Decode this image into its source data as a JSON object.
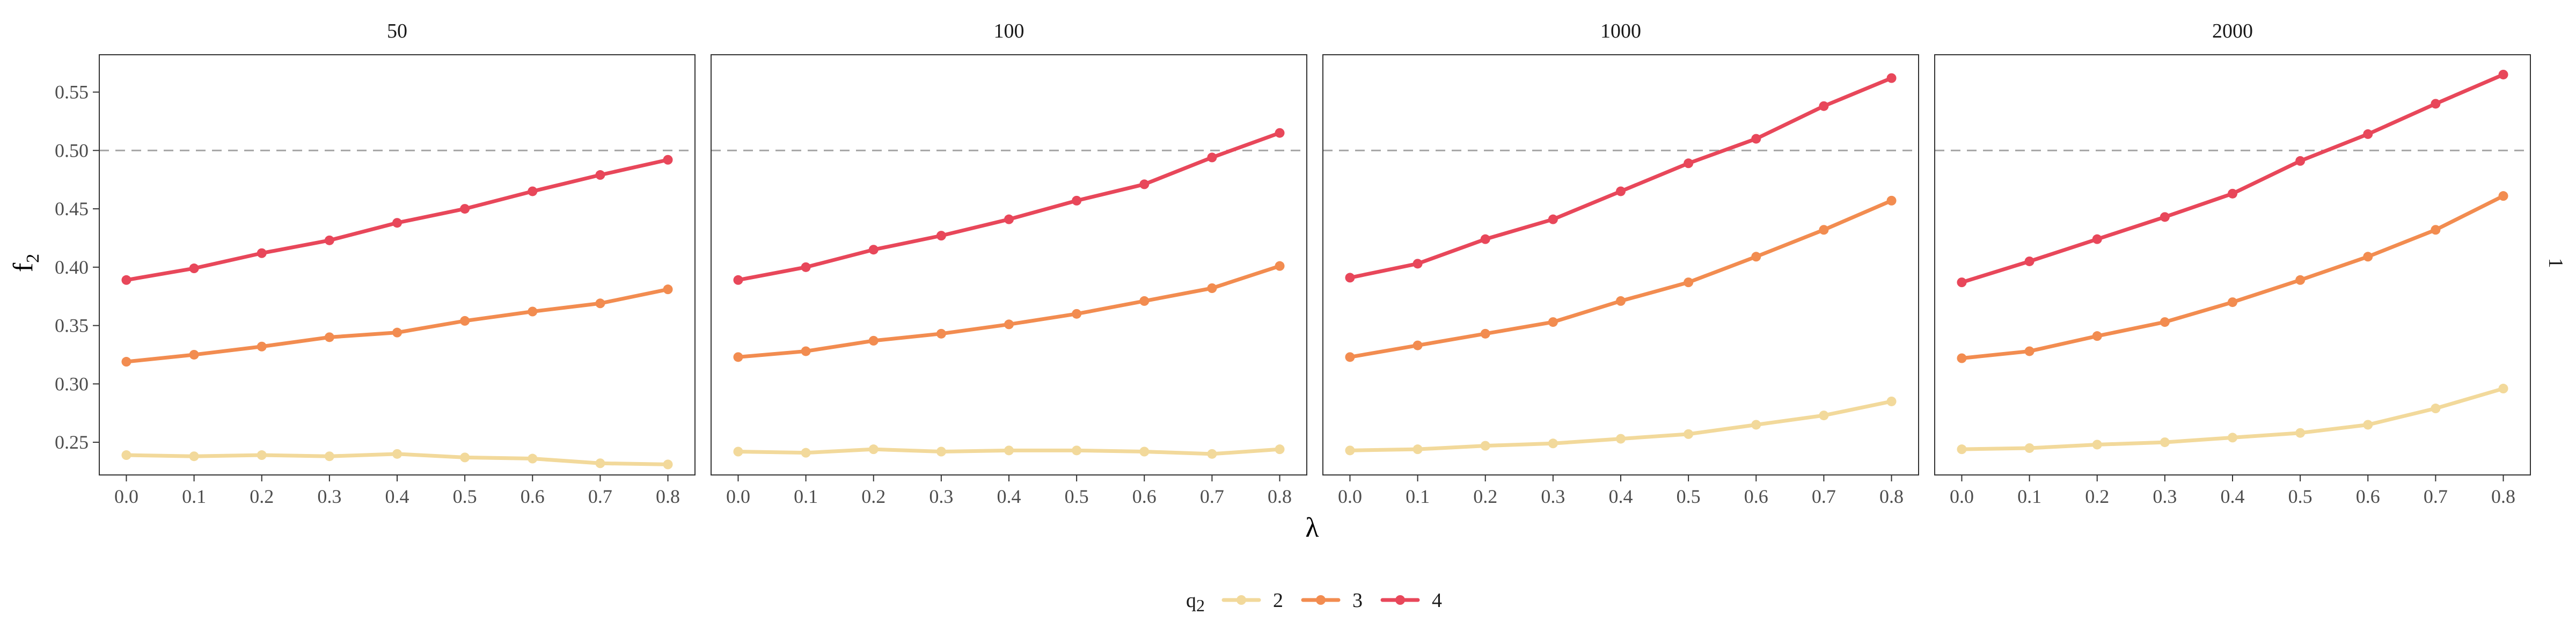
{
  "chart_data": {
    "type": "line",
    "xlabel": "λ",
    "ylabel": "f",
    "ylabel_subscript": "2",
    "right_strip_label": "1",
    "x_ticks": [
      "0.0",
      "0.1",
      "0.2",
      "0.3",
      "0.4",
      "0.5",
      "0.6",
      "0.7",
      "0.8"
    ],
    "y_ticks": [
      "0.25",
      "0.30",
      "0.35",
      "0.40",
      "0.45",
      "0.50",
      "0.55"
    ],
    "ylim": [
      0.222,
      0.582
    ],
    "xlim": [
      -0.04,
      0.84
    ],
    "reference_line": 0.5,
    "grid": false,
    "legend": {
      "position": "bottom",
      "title": "q",
      "title_subscript": "2",
      "entries": [
        {
          "label": "2",
          "color": "#F2D99B"
        },
        {
          "label": "3",
          "color": "#F28C50"
        },
        {
          "label": "4",
          "color": "#E8475A"
        }
      ]
    },
    "x": [
      0.0,
      0.1,
      0.2,
      0.3,
      0.4,
      0.5,
      0.6,
      0.7,
      0.8
    ],
    "panels": [
      {
        "title": "50",
        "series": [
          {
            "name": "2",
            "values": [
              0.239,
              0.238,
              0.239,
              0.238,
              0.24,
              0.237,
              0.236,
              0.232,
              0.231
            ]
          },
          {
            "name": "3",
            "values": [
              0.319,
              0.325,
              0.332,
              0.34,
              0.344,
              0.354,
              0.362,
              0.369,
              0.381
            ]
          },
          {
            "name": "4",
            "values": [
              0.389,
              0.399,
              0.412,
              0.423,
              0.438,
              0.45,
              0.465,
              0.479,
              0.492
            ]
          }
        ]
      },
      {
        "title": "100",
        "series": [
          {
            "name": "2",
            "values": [
              0.242,
              0.241,
              0.244,
              0.242,
              0.243,
              0.243,
              0.242,
              0.24,
              0.244
            ]
          },
          {
            "name": "3",
            "values": [
              0.323,
              0.328,
              0.337,
              0.343,
              0.351,
              0.36,
              0.371,
              0.382,
              0.401
            ]
          },
          {
            "name": "4",
            "values": [
              0.389,
              0.4,
              0.415,
              0.427,
              0.441,
              0.457,
              0.471,
              0.494,
              0.515
            ]
          }
        ]
      },
      {
        "title": "1000",
        "series": [
          {
            "name": "2",
            "values": [
              0.243,
              0.244,
              0.247,
              0.249,
              0.253,
              0.257,
              0.265,
              0.273,
              0.285
            ]
          },
          {
            "name": "3",
            "values": [
              0.323,
              0.333,
              0.343,
              0.353,
              0.371,
              0.387,
              0.409,
              0.432,
              0.457
            ]
          },
          {
            "name": "4",
            "values": [
              0.391,
              0.403,
              0.424,
              0.441,
              0.465,
              0.489,
              0.51,
              0.538,
              0.562
            ]
          }
        ]
      },
      {
        "title": "2000",
        "series": [
          {
            "name": "2",
            "values": [
              0.244,
              0.245,
              0.248,
              0.25,
              0.254,
              0.258,
              0.265,
              0.279,
              0.296
            ]
          },
          {
            "name": "3",
            "values": [
              0.322,
              0.328,
              0.341,
              0.353,
              0.37,
              0.389,
              0.409,
              0.432,
              0.461
            ]
          },
          {
            "name": "4",
            "values": [
              0.387,
              0.405,
              0.424,
              0.443,
              0.463,
              0.491,
              0.514,
              0.54,
              0.565
            ]
          }
        ]
      }
    ]
  }
}
